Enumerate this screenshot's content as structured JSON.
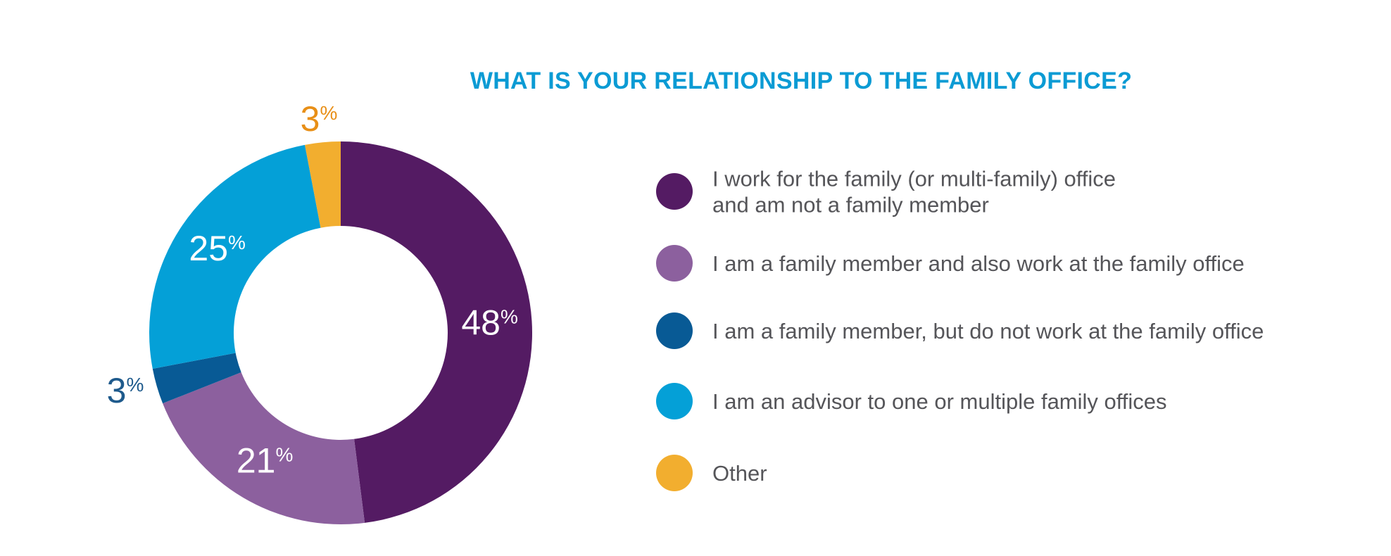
{
  "colors": {
    "title": "#0b9bd4",
    "legend_text": "#555559"
  },
  "chart_data": {
    "type": "pie",
    "variant": "donut",
    "title": "WHAT IS YOUR RELATIONSHIP TO THE FAMILY OFFICE?",
    "legend_placement": "right",
    "unit": "%",
    "slices": [
      {
        "name": "I work for the family (or multi-family) office and am not a family member",
        "legend_lines": [
          "I work for the family (or multi-family) office",
          "and am not a family member"
        ],
        "value": 48,
        "color": "#541b63",
        "label_color": "#ffffff",
        "label_placement": "inside"
      },
      {
        "name": "I am a family member and also work at the family office",
        "legend_lines": [
          "I am a family member and also work at the family office"
        ],
        "value": 21,
        "color": "#8c609e",
        "label_color": "#ffffff",
        "label_placement": "inside"
      },
      {
        "name": "I am a family member, but do not work at the family office",
        "legend_lines": [
          "I am a family member, but do not work at the family office"
        ],
        "value": 3,
        "color": "#085a95",
        "label_color": "#1e5a8c",
        "label_placement": "outside"
      },
      {
        "name": "I am an advisor to one or multiple family offices",
        "legend_lines": [
          "I am an advisor to one or multiple family offices"
        ],
        "value": 25,
        "color": "#04a0d7",
        "label_color": "#ffffff",
        "label_placement": "inside"
      },
      {
        "name": "Other",
        "legend_lines": [
          "Other"
        ],
        "value": 3,
        "color": "#f2ae2f",
        "label_color": "#e88f17",
        "label_placement": "outside"
      }
    ]
  }
}
